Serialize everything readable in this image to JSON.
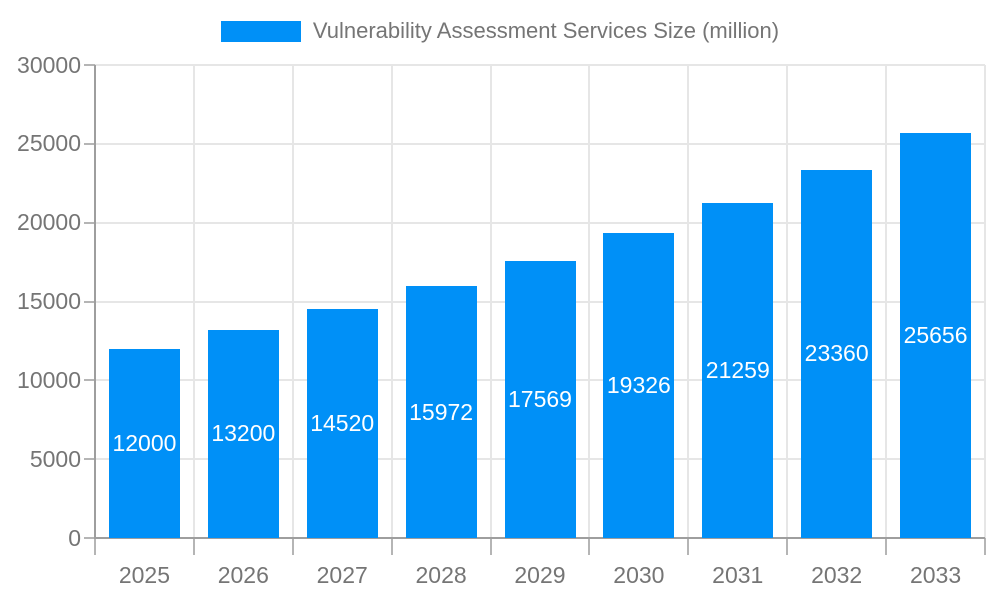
{
  "chart_data": {
    "type": "bar",
    "title": "Vulnerability Assessment Services Size (million)",
    "legend": [
      "Vulnerability Assessment Services Size (million)"
    ],
    "legend_position": "top",
    "categories": [
      "2025",
      "2026",
      "2027",
      "2028",
      "2029",
      "2030",
      "2031",
      "2032",
      "2033"
    ],
    "values": [
      12000,
      13200,
      14520,
      15972,
      17569,
      19326,
      21259,
      23360,
      25656
    ],
    "data_labels": [
      "12000",
      "13200",
      "14520",
      "15972",
      "17569",
      "19326",
      "21259",
      "23360",
      "25656"
    ],
    "xlabel": "",
    "ylabel": "",
    "ylim": [
      0,
      30000
    ],
    "yticks": [
      "0",
      "5000",
      "10000",
      "15000",
      "20000",
      "25000",
      "30000"
    ],
    "ytick_step": 5000,
    "grid": true,
    "colors": {
      "bar": "#0090f7",
      "bar_label_text": "#ffffff",
      "axis_text": "#757575",
      "grid_line": "#e6e6e6",
      "axis_line": "#9e9e9e",
      "tick_mark": "#b5b5b5",
      "background": "#ffffff"
    }
  }
}
